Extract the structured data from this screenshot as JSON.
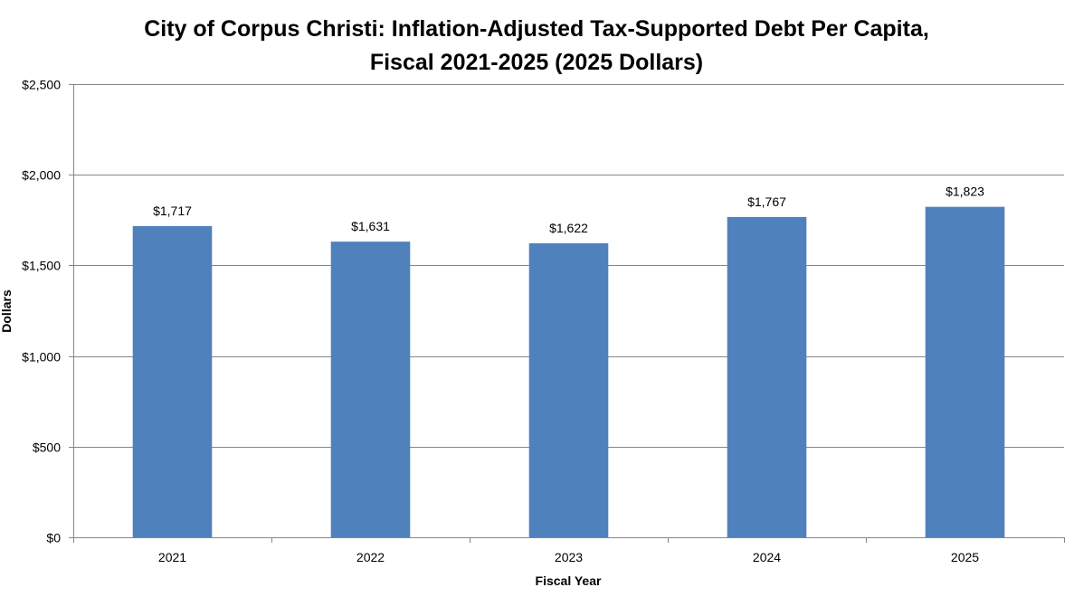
{
  "chart_data": {
    "type": "bar",
    "title": "City of Corpus Christi: Inflation-Adjusted Tax-Supported Debt Per Capita,",
    "subtitle": "Fiscal 2021-2025 (2025 Dollars)",
    "xlabel": "Fiscal Year",
    "ylabel": "Dollars",
    "categories": [
      "2021",
      "2022",
      "2023",
      "2024",
      "2025"
    ],
    "values": [
      1717,
      1631,
      1622,
      1767,
      1823
    ],
    "data_labels": [
      "$1,717",
      "$1,631",
      "$1,622",
      "$1,767",
      "$1,823"
    ],
    "ylim": [
      0,
      2500
    ],
    "yticks": [
      0,
      500,
      1000,
      1500,
      2000,
      2500
    ],
    "ytick_labels": [
      "$0",
      "$500",
      "$1,000",
      "$1,500",
      "$2,000",
      "$2,500"
    ],
    "grid": true,
    "legend": "none",
    "bar_color": "#4F81BD",
    "grid_color": "#868686"
  }
}
